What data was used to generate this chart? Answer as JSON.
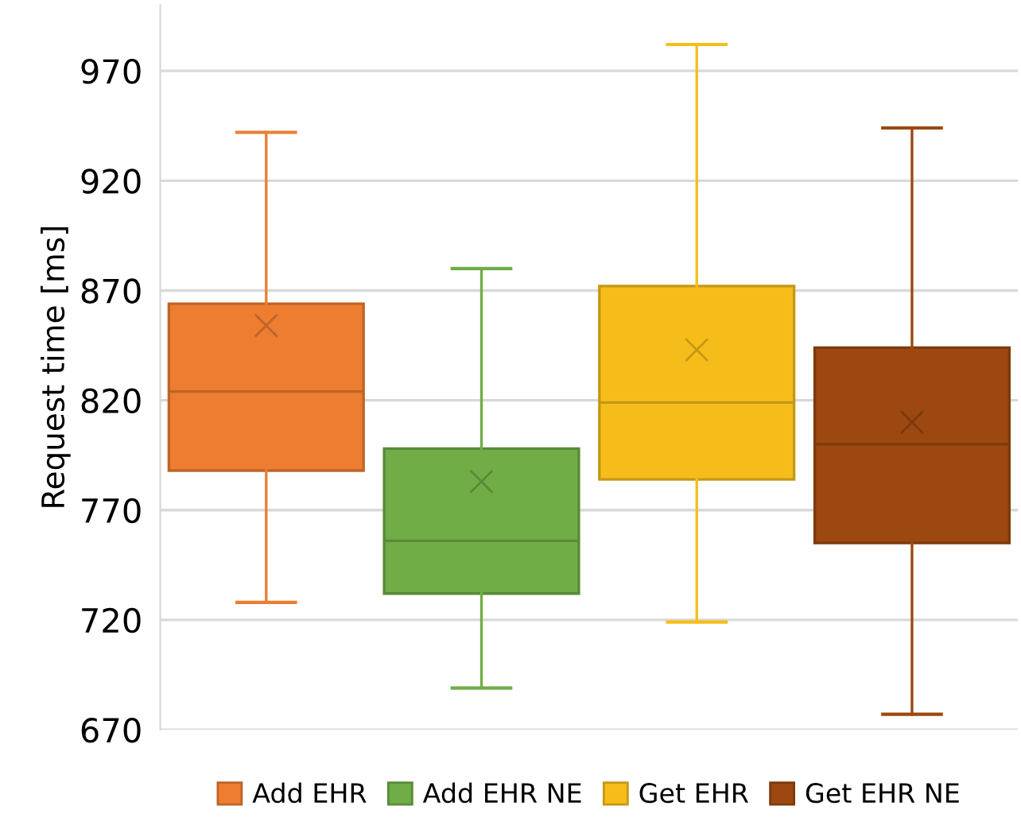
{
  "chart_data": {
    "type": "box",
    "ylabel": "Request time [ms]",
    "categories": [
      null
    ],
    "series": [
      {
        "name": "Add EHR",
        "color": "#ed7d31",
        "boxes": [
          {
            "low": 728,
            "q1": 788,
            "median": 824,
            "q3": 864,
            "high": 942,
            "mean": 854
          }
        ]
      },
      {
        "name": "Add EHR NE",
        "color": "#70ad47",
        "boxes": [
          {
            "low": 689,
            "q1": 732,
            "median": 756,
            "q3": 798,
            "high": 880,
            "mean": 783
          }
        ]
      },
      {
        "name": "Get EHR",
        "color": "#f6bd1a",
        "boxes": [
          {
            "low": 719,
            "q1": 784,
            "median": 819,
            "q3": 872,
            "high": 982,
            "mean": 843
          }
        ]
      },
      {
        "name": "Get EHR NE",
        "color": "#9c4810",
        "boxes": [
          {
            "low": 677,
            "q1": 755,
            "median": 800,
            "q3": 844,
            "high": 944,
            "mean": 810
          }
        ]
      }
    ],
    "ylim": [
      670,
      1000
    ],
    "yticks": [
      670,
      720,
      770,
      820,
      870,
      920,
      970
    ],
    "grid": "y",
    "legend": "bottom",
    "tick_labels": "y"
  }
}
